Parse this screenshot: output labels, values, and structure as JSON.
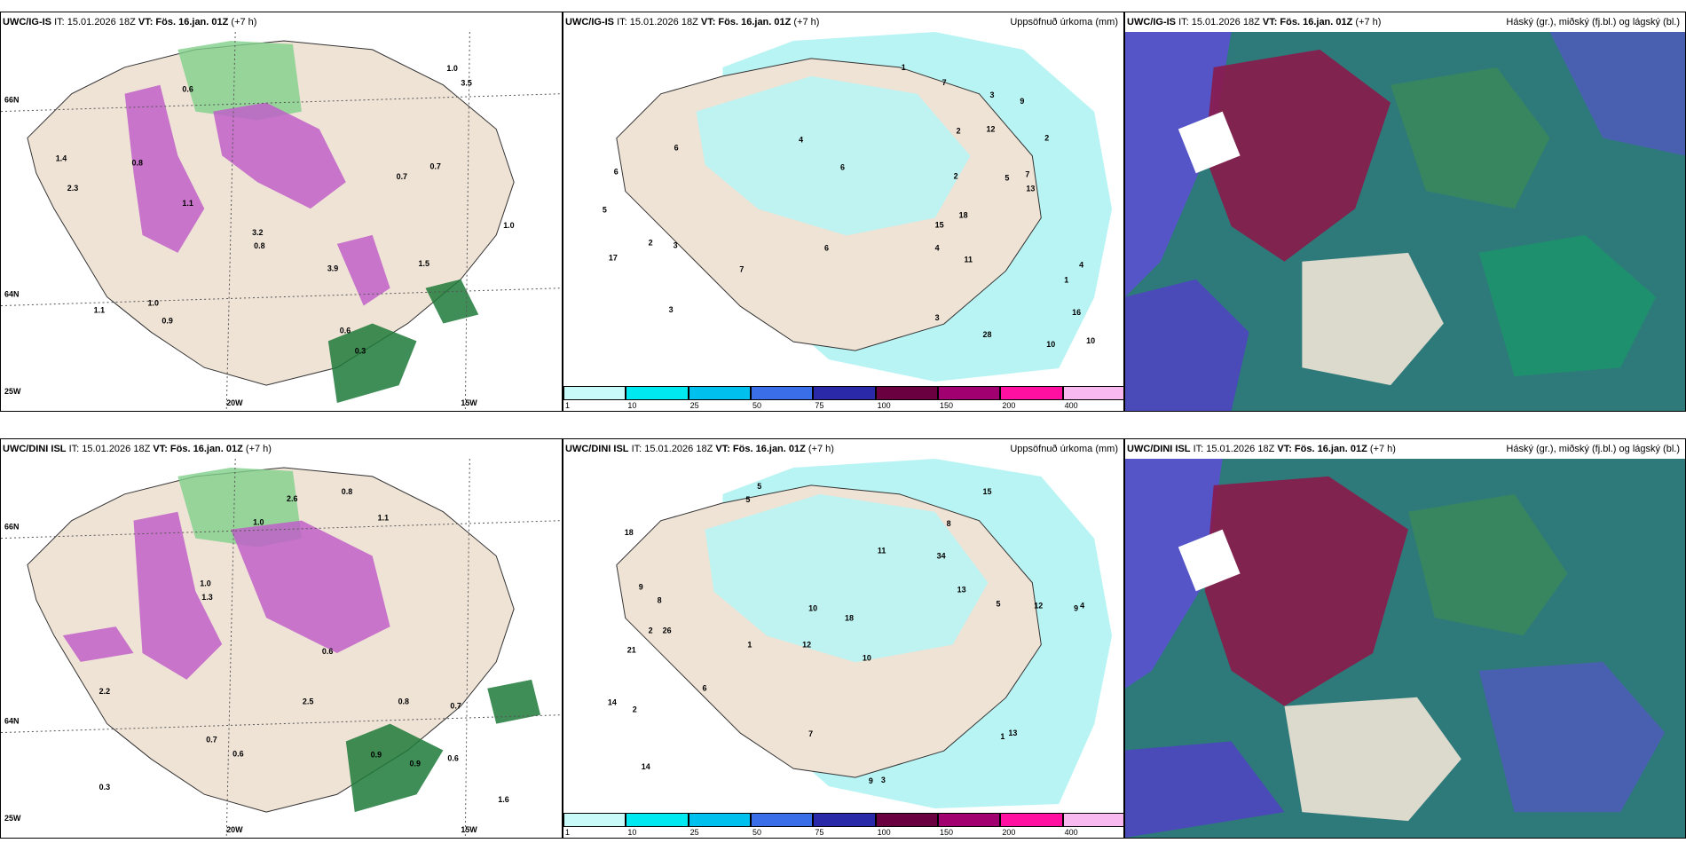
{
  "row1": {
    "p1": {
      "model": "UWC/IG-IS",
      "it": "IT: 15.01.2026 18Z",
      "vt_label": "VT:",
      "vt": "Fös. 16.jan. 01Z",
      "lead": "(+7 h)",
      "lat_labels": [
        "66N",
        "64N"
      ],
      "lon_labels": [
        "20W",
        "15W",
        "25W"
      ],
      "values": [
        "0.3",
        "0.6",
        "1.0",
        "0.8",
        "0.7",
        "0.6",
        "1.0",
        "1.1",
        "0.8",
        "0.9",
        "1.1",
        "1.4",
        "3.2",
        "3.9",
        "0.7",
        "1.0",
        "2.3",
        "3.5",
        "1.5"
      ]
    },
    "p2": {
      "model": "UWC/IG-IS",
      "it": "IT: 15.01.2026 18Z",
      "vt_label": "VT:",
      "vt": "Fös. 16.jan. 01Z",
      "lead": "(+7 h)",
      "title": "Uppsöfnuð úrkoma (mm)",
      "values": [
        "4",
        "4",
        "5",
        "1",
        "3",
        "12",
        "7",
        "6",
        "16",
        "28",
        "18",
        "15",
        "17",
        "11",
        "7",
        "10",
        "9",
        "2",
        "3",
        "4",
        "6",
        "5",
        "2",
        "7",
        "13",
        "3",
        "6",
        "2",
        "10",
        "3",
        "2",
        "1",
        "6"
      ]
    },
    "p3": {
      "model": "UWC/IG-IS",
      "it": "IT: 15.01.2026 18Z",
      "vt_label": "VT:",
      "vt": "Fös. 16.jan. 01Z",
      "lead": "(+7 h)",
      "title": "Háský (gr.), miðský (fj.bl.) og lágský (bl.)"
    }
  },
  "row2": {
    "p1": {
      "model": "UWC/DINI ISL",
      "it": "IT: 15.01.2026 18Z",
      "vt_label": "VT:",
      "vt": "Fös. 16.jan. 01Z",
      "lead": "(+7 h)",
      "lat_labels": [
        "66N",
        "64N"
      ],
      "lon_labels": [
        "20W",
        "15W",
        "25W"
      ],
      "values": [
        "0.3",
        "0.7",
        "0.6",
        "2.5",
        "1.0",
        "0.8",
        "0.6",
        "1.1",
        "0.9",
        "0.7",
        "1.6",
        "1.3",
        "0.6",
        "2.6",
        "0.9",
        "1.0",
        "0.8",
        "2.2"
      ]
    },
    "p2": {
      "model": "UWC/DINI ISL",
      "it": "IT: 15.01.2026 18Z",
      "vt_label": "VT:",
      "vt": "Fös. 16.jan. 01Z",
      "lead": "(+7 h)",
      "title": "Uppsöfnuð úrkoma (mm)",
      "values": [
        "5",
        "8",
        "9",
        "12",
        "10",
        "26",
        "18",
        "34",
        "21",
        "11",
        "18",
        "14",
        "5",
        "1",
        "9",
        "3",
        "7",
        "15",
        "13",
        "6",
        "8",
        "2",
        "4",
        "12",
        "14",
        "9",
        "10",
        "5",
        "13",
        "2",
        "1"
      ]
    },
    "p3": {
      "model": "UWC/DINI ISL",
      "it": "IT: 15.01.2026 18Z",
      "vt_label": "VT:",
      "vt": "Fös. 16.jan. 01Z",
      "lead": "(+7 h)",
      "title": "Háský (gr.), miðský (fj.bl.) og lágský (bl.)"
    }
  },
  "legend": {
    "ticks": [
      "1",
      "10",
      "25",
      "50",
      "75",
      "100",
      "150",
      "200",
      "400"
    ],
    "colors": [
      "#c8fafa",
      "#00e8f0",
      "#00c0ee",
      "#3a6ee8",
      "#2a2aa8",
      "#6a0040",
      "#a00070",
      "#ff10a0",
      "#f8b8f0"
    ]
  },
  "colors": {
    "land": "#efe3d6",
    "snow_purple": "#c060c8",
    "snow_dark": "#6a2a6a",
    "green": "#2ea84a",
    "precip": "#b8f4f4"
  }
}
